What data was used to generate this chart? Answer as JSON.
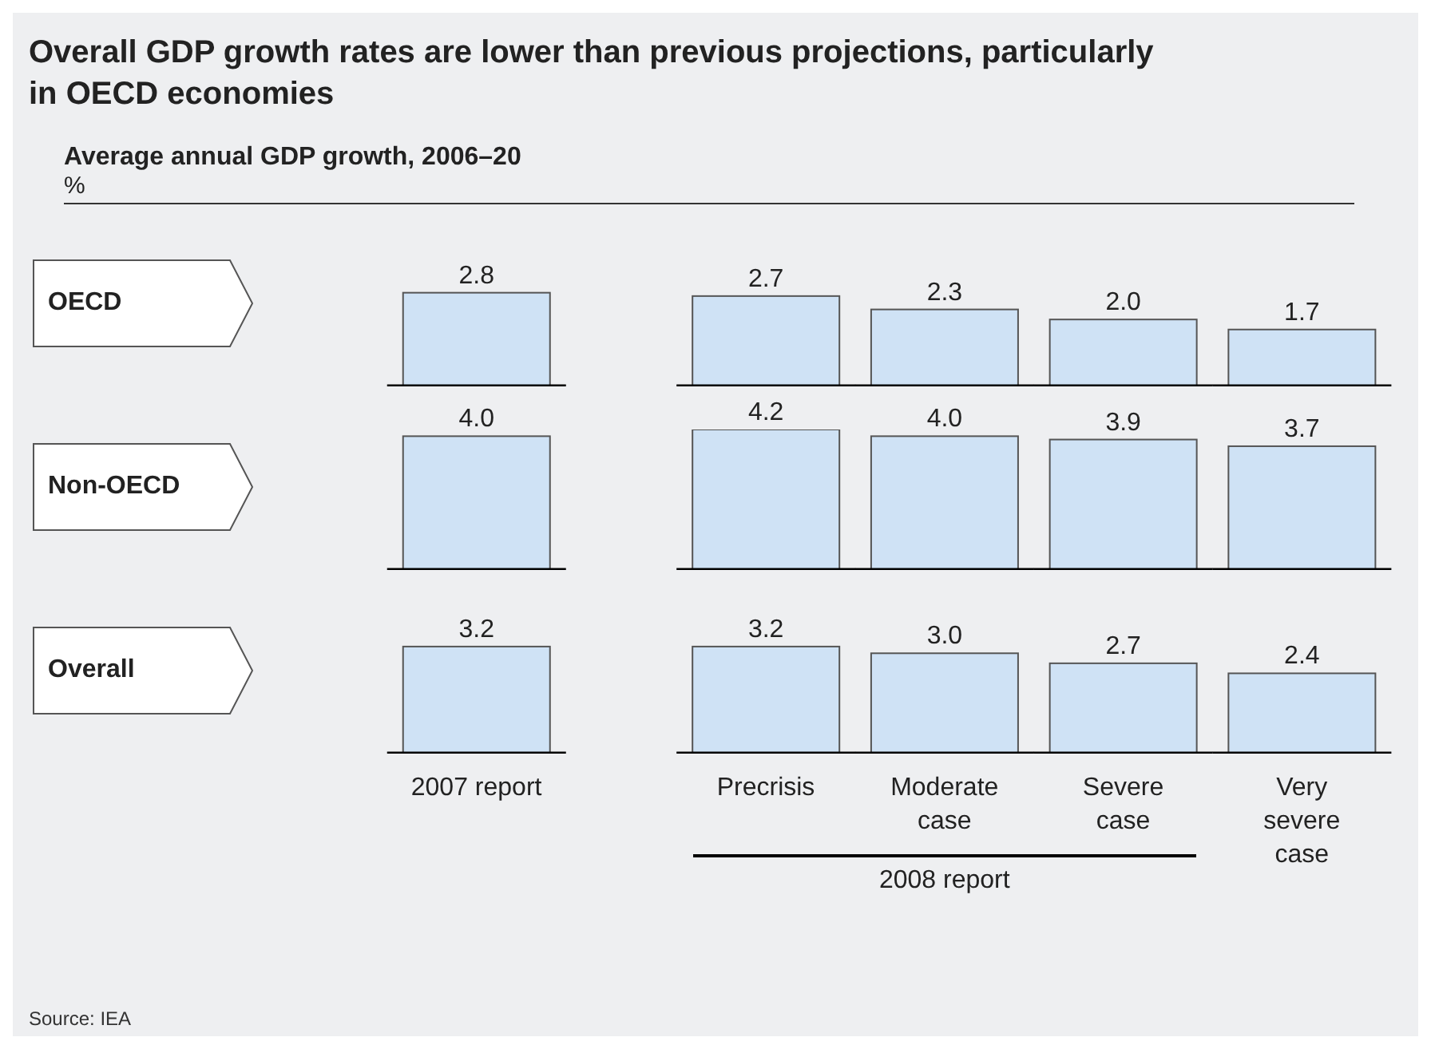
{
  "chart_data": [
    {
      "type": "bar",
      "title": "Overall GDP growth rates are lower than previous projections, particularly in OECD economies",
      "subtitle": "Average annual GDP growth, 2006–20",
      "annotations": [
        "%"
      ],
      "ylabel": "OECD",
      "values": [
        2.8,
        2.7,
        2.3,
        2.0,
        1.7
      ],
      "value_labels": [
        "2.8",
        "2.7",
        "2.3",
        "2.0",
        "1.7"
      ],
      "color": "#cfe2f5",
      "tick_labels": false
    },
    {
      "type": "bar",
      "ylabel": "Non-OECD",
      "values": [
        4.0,
        4.2,
        4.0,
        3.9,
        3.7
      ],
      "value_labels": [
        "4.0",
        "4.2",
        "4.0",
        "3.9",
        "3.7"
      ],
      "color": "#cfe2f5",
      "tick_labels": false
    },
    {
      "type": "bar",
      "ylabel": "Overall",
      "categories": [
        "2007 report",
        "Precrisis",
        "Moderate case",
        "Severe case",
        "Very severe case"
      ],
      "values": [
        3.2,
        3.2,
        3.0,
        2.7,
        2.4
      ],
      "value_labels": [
        "3.2",
        "3.2",
        "3.0",
        "2.7",
        "2.4"
      ],
      "color": "#cfe2f5",
      "tick_labels": "x",
      "annotations": [
        "2008 report",
        "Source: IEA"
      ]
    }
  ]
}
